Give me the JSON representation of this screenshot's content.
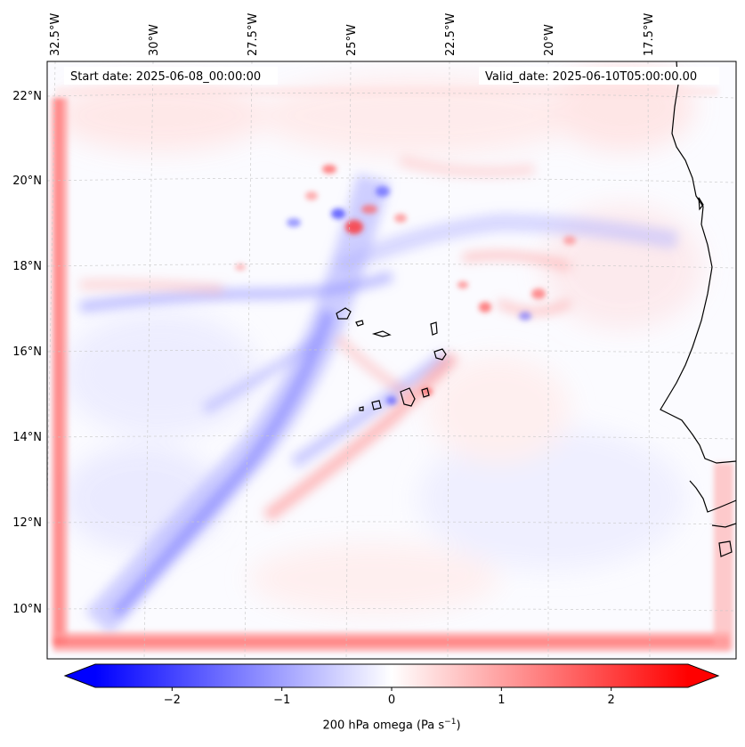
{
  "map": {
    "start_date": "Start date: 2025-06-08_00:00:00",
    "valid_date": "Valid_date: 2025-06-10T05:00:00.00",
    "lon_ticks": [
      "32.5°W",
      "30°W",
      "27.5°W",
      "25°W",
      "22.5°W",
      "20°W",
      "17.5°W"
    ],
    "lat_ticks": [
      "22°N",
      "20°N",
      "18°N",
      "16°N",
      "14°N",
      "12°N",
      "10°N"
    ],
    "gridlines": true,
    "coastlines": true
  },
  "colorbar": {
    "label_text": "200 hPa omega (Pa s",
    "label_exponent": "−1",
    "label_close": ")",
    "ticks": [
      "−2",
      "−1",
      "0",
      "1",
      "2"
    ],
    "min": -2.7,
    "max": 2.7,
    "extend": "both",
    "colors": {
      "low": "#0000ff",
      "mid": "#ffffff",
      "high": "#ff0000"
    }
  }
}
